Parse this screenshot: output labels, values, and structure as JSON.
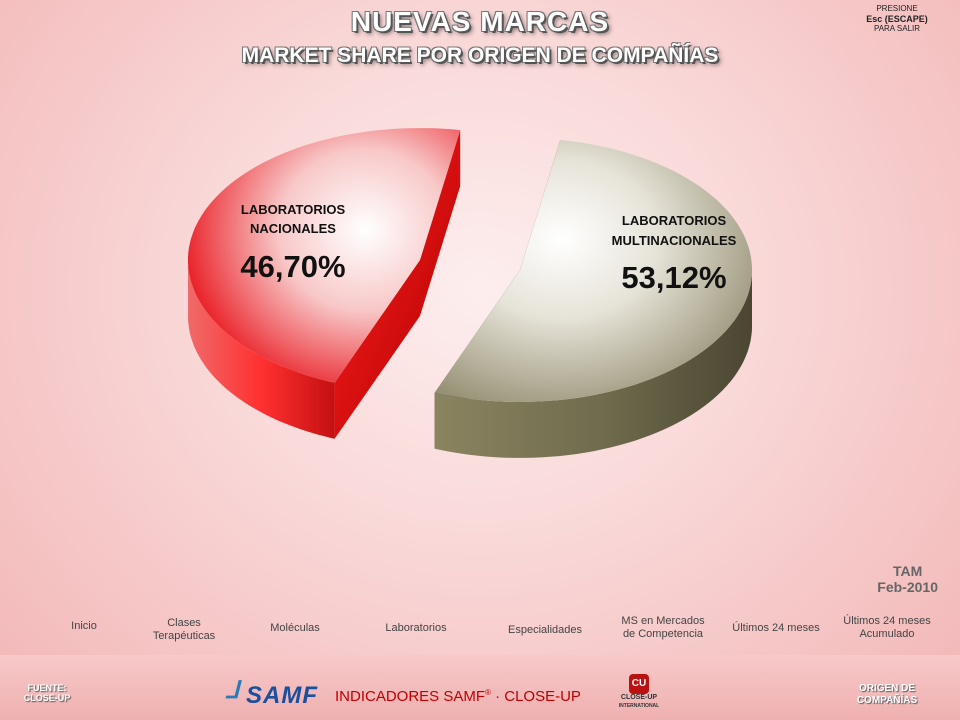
{
  "header": {
    "title": "NUEVAS MARCAS",
    "subtitle": "MARKET SHARE POR ORIGEN DE COMPAÑÍAS",
    "escape_line1": "PRESIONE",
    "escape_line2": "Esc (ESCAPE)",
    "escape_line3": "PARA SALIR"
  },
  "chart_data": {
    "type": "pie",
    "style": "3d-exploded",
    "slices": [
      {
        "label_line1": "LABORATORIOS",
        "label_line2": "NACIONALES",
        "value": 46.7,
        "value_label": "46,70%",
        "color": "#e81c1c"
      },
      {
        "label_line1": "LABORATORIOS",
        "label_line2": "MULTINACIONALES",
        "value": 53.12,
        "value_label": "53,12%",
        "color": "#8e8a6a"
      }
    ]
  },
  "period": {
    "line1": "TAM",
    "line2": "Feb-2010"
  },
  "nav": {
    "inicio": "Inicio",
    "clases_1": "Clases",
    "clases_2": "Terapéuticas",
    "moleculas": "Moléculas",
    "laboratorios": "Laboratorios",
    "especialidades": "Especialidades",
    "ms_1": "MS en Mercados",
    "ms_2": "de Competencia",
    "ultimos": "Últimos 24 meses",
    "ultimos_acum_1": "Últimos 24 meses",
    "ultimos_acum_2": "Acumulado"
  },
  "footer": {
    "fuente_1": "FUENTE:",
    "fuente_2": "CLOSE-UP",
    "center_a": "INDICADORES SAMF",
    "center_reg": "®",
    "center_b": " · CLOSE-UP",
    "origen_1": "ORIGEN DE",
    "origen_2": "COMPAÑÍAS",
    "samf_logo_text": "SAMF",
    "closeup_logo_badge": "CU",
    "closeup_logo_text": "CLOSE-UP",
    "closeup_logo_sub": "INTERNATIONAL"
  }
}
